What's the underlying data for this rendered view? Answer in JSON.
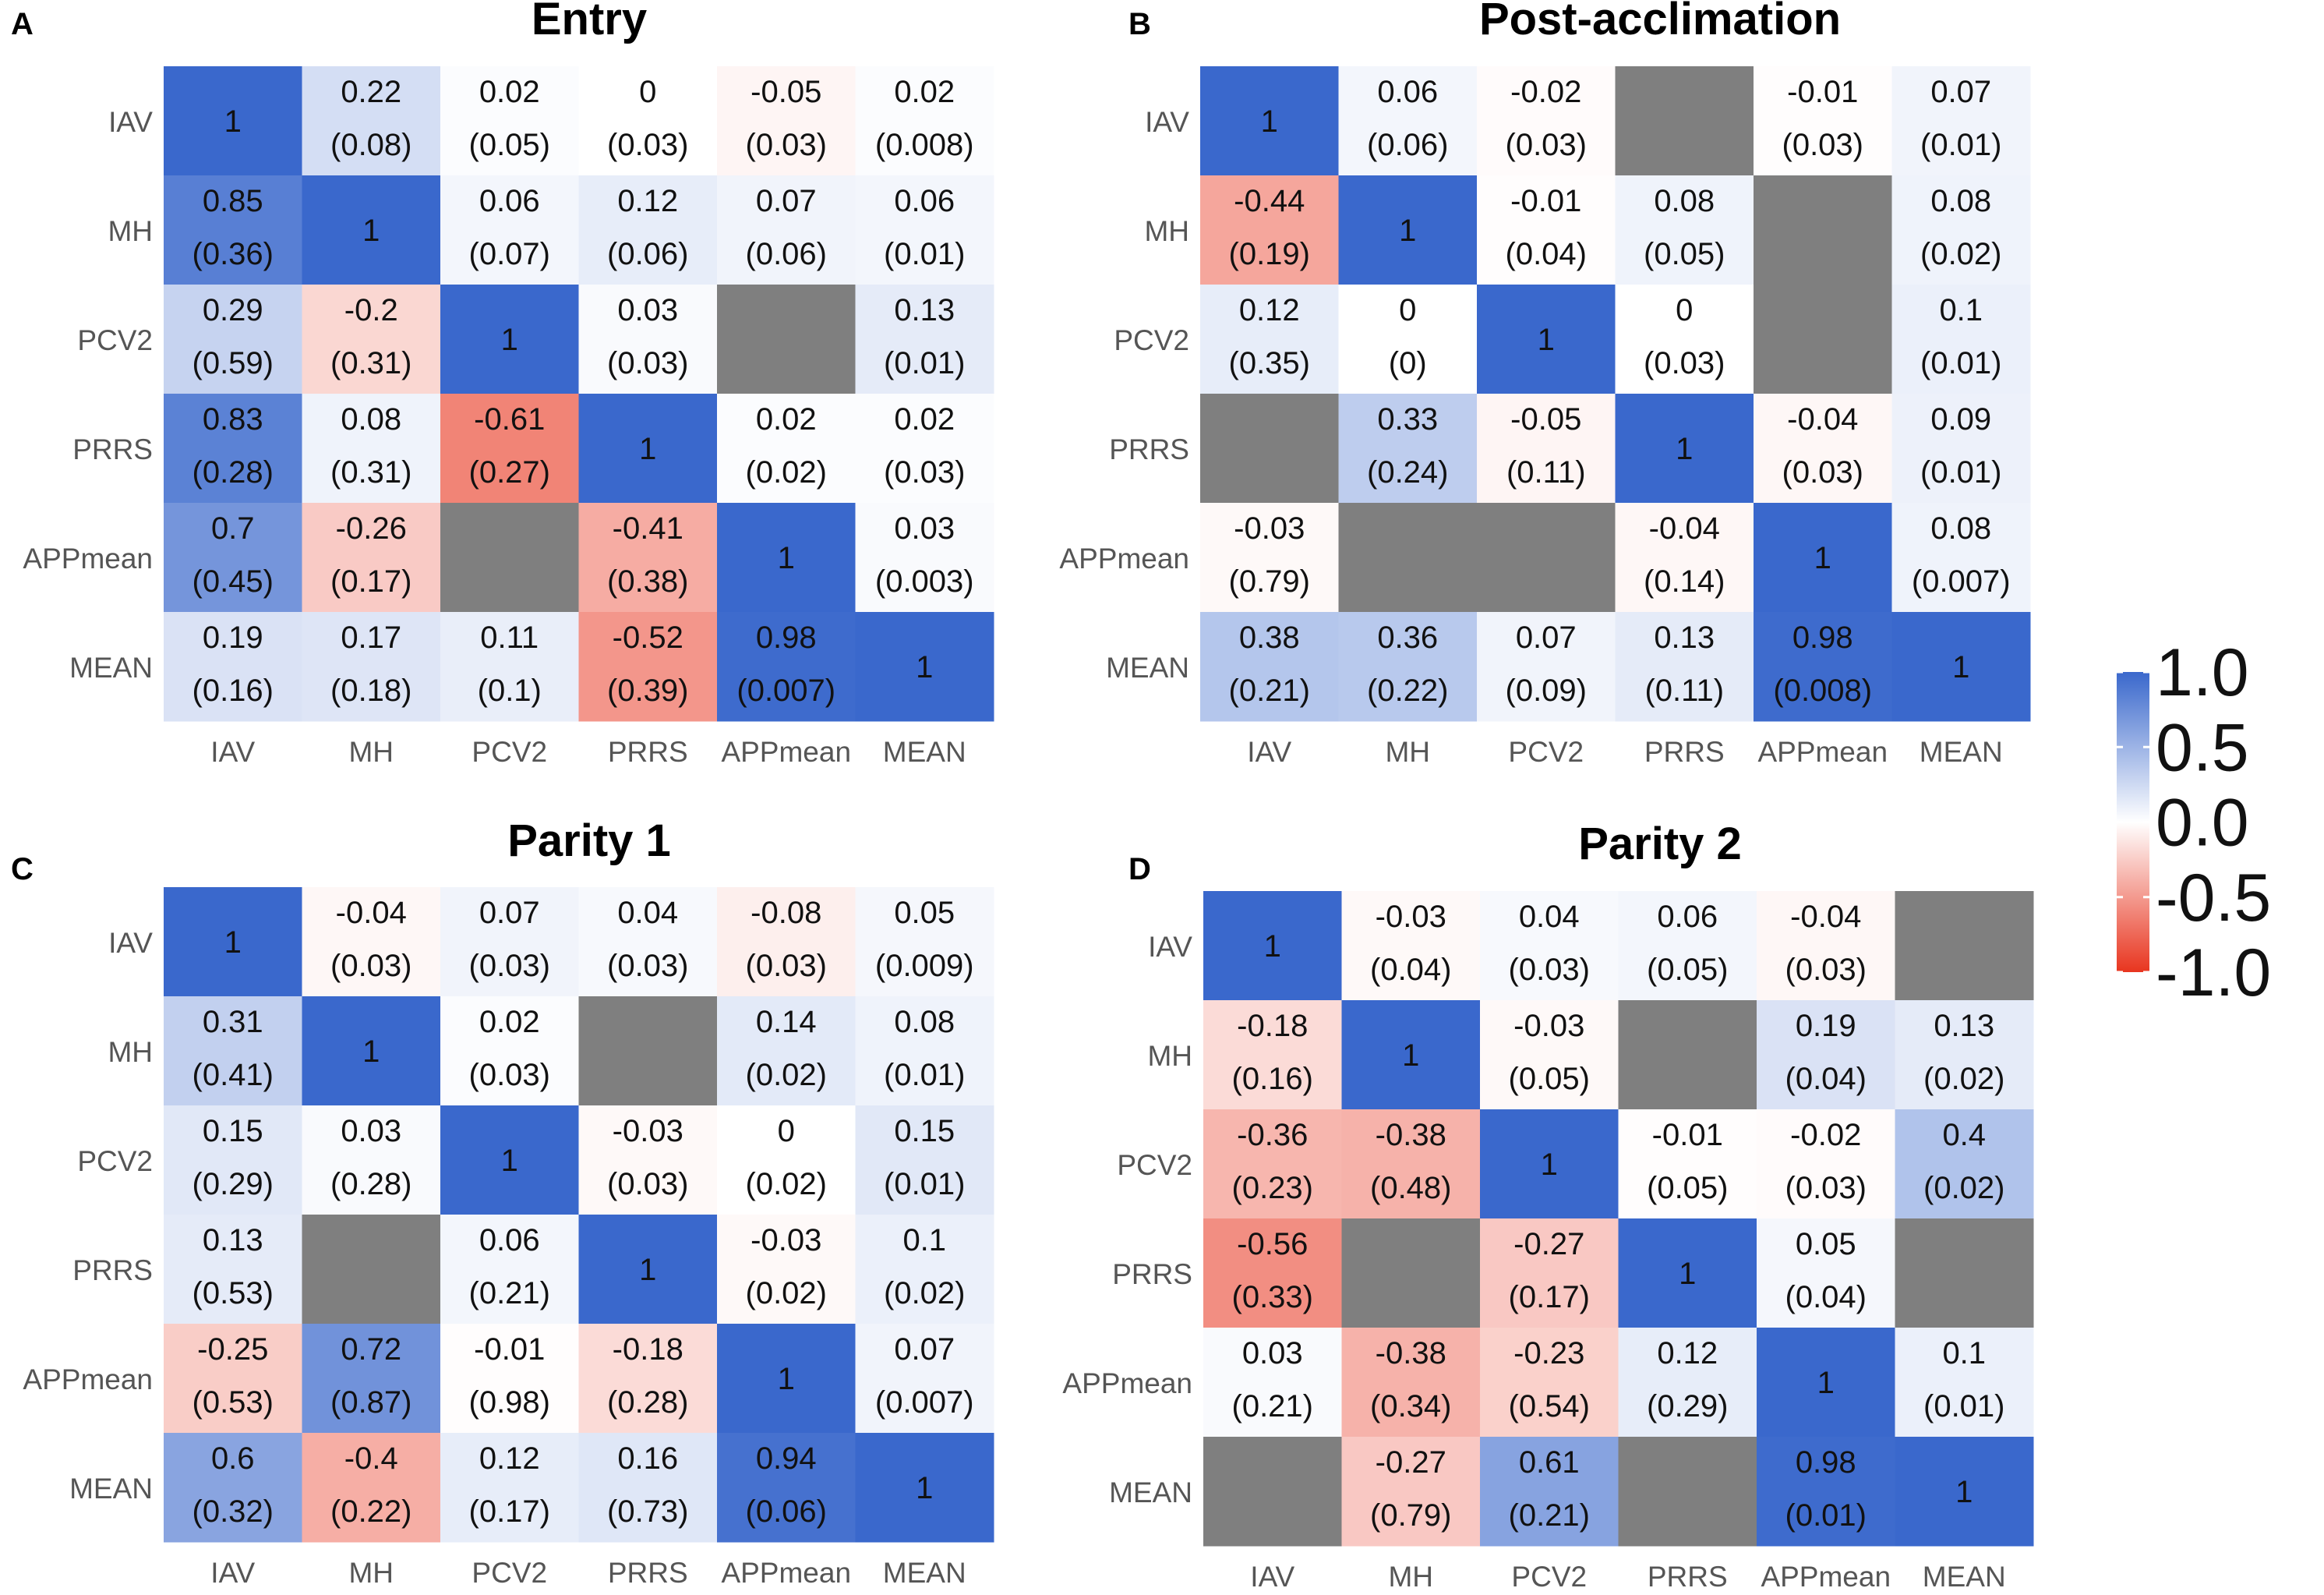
{
  "figure": {
    "color_scale": {
      "low_color": "#E8351F",
      "mid_color": "#FFFFFF",
      "high_color": "#3A68CC",
      "missing_color": "#7F7F7F",
      "ticks": [
        {
          "value": 1.0,
          "label": "1.0"
        },
        {
          "value": 0.5,
          "label": "0.5"
        },
        {
          "value": 0.0,
          "label": "0.0"
        },
        {
          "value": -0.5,
          "label": "-0.5"
        },
        {
          "value": -1.0,
          "label": "-1.0"
        }
      ]
    }
  },
  "chart_data": [
    {
      "type": "heatmap",
      "panel_label": "A",
      "title": "Entry",
      "categories": [
        "IAV",
        "MH",
        "PCV2",
        "PRRS",
        "APPmean",
        "MEAN"
      ],
      "values": [
        [
          1,
          0.22,
          0.02,
          0,
          -0.05,
          0.02
        ],
        [
          0.85,
          1,
          0.06,
          0.12,
          0.07,
          0.06
        ],
        [
          0.29,
          -0.2,
          1,
          0.03,
          null,
          0.13
        ],
        [
          0.83,
          0.08,
          -0.61,
          1,
          0.02,
          0.02
        ],
        [
          0.7,
          -0.26,
          null,
          -0.41,
          1,
          0.03
        ],
        [
          0.19,
          0.17,
          0.11,
          -0.52,
          0.98,
          1
        ]
      ],
      "labels": [
        [
          "1",
          "0.22",
          "0.02",
          "0",
          "-0.05",
          "0.02"
        ],
        [
          "0.85",
          "1",
          "0.06",
          "0.12",
          "0.07",
          "0.06"
        ],
        [
          "0.29",
          "-0.2",
          "1",
          "0.03",
          "",
          "0.13"
        ],
        [
          "0.83",
          "0.08",
          "-0.61",
          "1",
          "0.02",
          "0.02"
        ],
        [
          "0.7",
          "-0.26",
          "",
          "-0.41",
          "1",
          "0.03"
        ],
        [
          "0.19",
          "0.17",
          "0.11",
          "-0.52",
          "0.98",
          "1"
        ]
      ],
      "sub_labels": [
        [
          "",
          "(0.08)",
          "(0.05)",
          "(0.03)",
          "(0.03)",
          "(0.008)"
        ],
        [
          "(0.36)",
          "",
          "(0.07)",
          "(0.06)",
          "(0.06)",
          "(0.01)"
        ],
        [
          "(0.59)",
          "(0.31)",
          "",
          "(0.03)",
          "",
          "(0.01)"
        ],
        [
          "(0.28)",
          "(0.31)",
          "(0.27)",
          "",
          "(0.02)",
          "(0.03)"
        ],
        [
          "(0.45)",
          "(0.17)",
          "",
          "(0.38)",
          "",
          "(0.003)"
        ],
        [
          "(0.16)",
          "(0.18)",
          "(0.1)",
          "(0.39)",
          "(0.007)",
          ""
        ]
      ]
    },
    {
      "type": "heatmap",
      "panel_label": "B",
      "title": "Post-acclimation",
      "categories": [
        "IAV",
        "MH",
        "PCV2",
        "PRRS",
        "APPmean",
        "MEAN"
      ],
      "values": [
        [
          1,
          0.06,
          -0.02,
          null,
          -0.01,
          0.07
        ],
        [
          -0.44,
          1,
          -0.01,
          0.08,
          null,
          0.08
        ],
        [
          0.12,
          0,
          1,
          0,
          null,
          0.1
        ],
        [
          null,
          0.33,
          -0.05,
          1,
          -0.04,
          0.09
        ],
        [
          -0.03,
          null,
          null,
          -0.04,
          1,
          0.08
        ],
        [
          0.38,
          0.36,
          0.07,
          0.13,
          0.98,
          1
        ]
      ],
      "labels": [
        [
          "1",
          "0.06",
          "-0.02",
          "",
          "-0.01",
          "0.07"
        ],
        [
          "-0.44",
          "1",
          "-0.01",
          "0.08",
          "",
          "0.08"
        ],
        [
          "0.12",
          "0",
          "1",
          "0",
          "",
          "0.1"
        ],
        [
          "",
          "0.33",
          "-0.05",
          "1",
          "-0.04",
          "0.09"
        ],
        [
          "-0.03",
          "",
          "",
          "-0.04",
          "1",
          "0.08"
        ],
        [
          "0.38",
          "0.36",
          "0.07",
          "0.13",
          "0.98",
          "1"
        ]
      ],
      "sub_labels": [
        [
          "",
          "(0.06)",
          "(0.03)",
          "",
          "(0.03)",
          "(0.01)"
        ],
        [
          "(0.19)",
          "",
          "(0.04)",
          "(0.05)",
          "",
          "(0.02)"
        ],
        [
          "(0.35)",
          "(0)",
          "",
          "(0.03)",
          "",
          "(0.01)"
        ],
        [
          "",
          "(0.24)",
          "(0.11)",
          "",
          "(0.03)",
          "(0.01)"
        ],
        [
          "(0.79)",
          "",
          "",
          "(0.14)",
          "",
          "(0.007)"
        ],
        [
          "(0.21)",
          "(0.22)",
          "(0.09)",
          "(0.11)",
          "(0.008)",
          ""
        ]
      ]
    },
    {
      "type": "heatmap",
      "panel_label": "C",
      "title": "Parity 1",
      "categories": [
        "IAV",
        "MH",
        "PCV2",
        "PRRS",
        "APPmean",
        "MEAN"
      ],
      "values": [
        [
          1,
          -0.04,
          0.07,
          0.04,
          -0.08,
          0.05
        ],
        [
          0.31,
          1,
          0.02,
          null,
          0.14,
          0.08
        ],
        [
          0.15,
          0.03,
          1,
          -0.03,
          0,
          0.15
        ],
        [
          0.13,
          null,
          0.06,
          1,
          -0.03,
          0.1
        ],
        [
          -0.25,
          0.72,
          -0.01,
          -0.18,
          1,
          0.07
        ],
        [
          0.6,
          -0.4,
          0.12,
          0.16,
          0.94,
          1
        ]
      ],
      "labels": [
        [
          "1",
          "-0.04",
          "0.07",
          "0.04",
          "-0.08",
          "0.05"
        ],
        [
          "0.31",
          "1",
          "0.02",
          "",
          "0.14",
          "0.08"
        ],
        [
          "0.15",
          "0.03",
          "1",
          "-0.03",
          "0",
          "0.15"
        ],
        [
          "0.13",
          "",
          "0.06",
          "1",
          "-0.03",
          "0.1"
        ],
        [
          "-0.25",
          "0.72",
          "-0.01",
          "-0.18",
          "1",
          "0.07"
        ],
        [
          "0.6",
          "-0.4",
          "0.12",
          "0.16",
          "0.94",
          "1"
        ]
      ],
      "sub_labels": [
        [
          "",
          "(0.03)",
          "(0.03)",
          "(0.03)",
          "(0.03)",
          "(0.009)"
        ],
        [
          "(0.41)",
          "",
          "(0.03)",
          "",
          "(0.02)",
          "(0.01)"
        ],
        [
          "(0.29)",
          "(0.28)",
          "",
          "(0.03)",
          "(0.02)",
          "(0.01)"
        ],
        [
          "(0.53)",
          "",
          "(0.21)",
          "",
          "(0.02)",
          "(0.02)"
        ],
        [
          "(0.53)",
          "(0.87)",
          "(0.98)",
          "(0.28)",
          "",
          "(0.007)"
        ],
        [
          "(0.32)",
          "(0.22)",
          "(0.17)",
          "(0.73)",
          "(0.06)",
          ""
        ]
      ]
    },
    {
      "type": "heatmap",
      "panel_label": "D",
      "title": "Parity 2",
      "categories": [
        "IAV",
        "MH",
        "PCV2",
        "PRRS",
        "APPmean",
        "MEAN"
      ],
      "values": [
        [
          1,
          -0.03,
          0.04,
          0.06,
          -0.04,
          null
        ],
        [
          -0.18,
          1,
          -0.03,
          null,
          0.19,
          0.13
        ],
        [
          -0.36,
          -0.38,
          1,
          -0.01,
          -0.02,
          0.4
        ],
        [
          -0.56,
          null,
          -0.27,
          1,
          0.05,
          null
        ],
        [
          0.03,
          -0.38,
          -0.23,
          0.12,
          1,
          0.1
        ],
        [
          null,
          -0.27,
          0.61,
          null,
          0.98,
          1
        ]
      ],
      "labels": [
        [
          "1",
          "-0.03",
          "0.04",
          "0.06",
          "-0.04",
          ""
        ],
        [
          "-0.18",
          "1",
          "-0.03",
          "",
          "0.19",
          "0.13"
        ],
        [
          "-0.36",
          "-0.38",
          "1",
          "-0.01",
          "-0.02",
          "0.4"
        ],
        [
          "-0.56",
          "",
          "-0.27",
          "1",
          "0.05",
          ""
        ],
        [
          "0.03",
          "-0.38",
          "-0.23",
          "0.12",
          "1",
          "0.1"
        ],
        [
          "",
          "-0.27",
          "0.61",
          "",
          "0.98",
          "1"
        ]
      ],
      "sub_labels": [
        [
          "",
          "(0.04)",
          "(0.03)",
          "(0.05)",
          "(0.03)",
          ""
        ],
        [
          "(0.16)",
          "",
          "(0.05)",
          "",
          "(0.04)",
          "(0.02)"
        ],
        [
          "(0.23)",
          "(0.48)",
          "",
          "(0.05)",
          "(0.03)",
          "(0.02)"
        ],
        [
          "(0.33)",
          "",
          "(0.17)",
          "",
          "(0.04)",
          ""
        ],
        [
          "(0.21)",
          "(0.34)",
          "(0.54)",
          "(0.29)",
          "",
          "(0.01)"
        ],
        [
          "",
          "(0.79)",
          "(0.21)",
          "",
          "(0.01)",
          ""
        ]
      ]
    }
  ]
}
